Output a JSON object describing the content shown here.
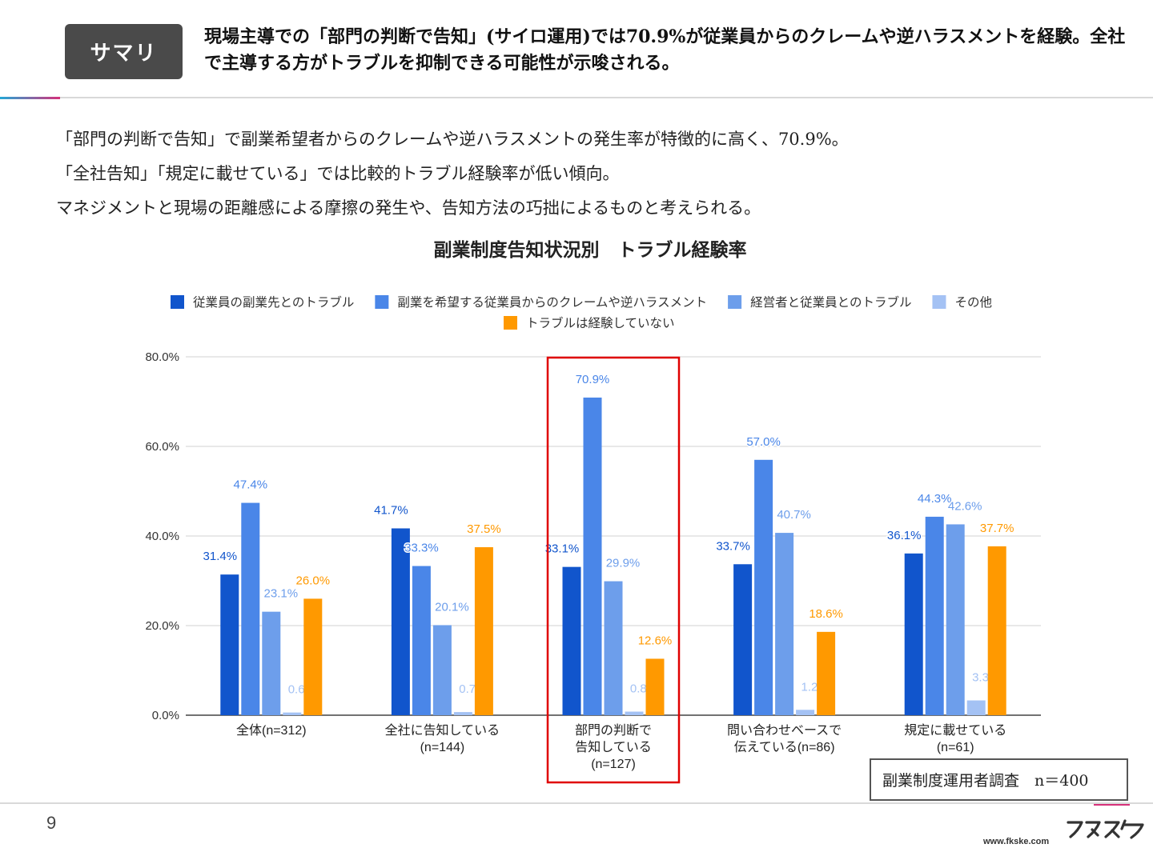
{
  "summary": {
    "badge": "サマリ",
    "text": "現場主導での「部門の判断で告知」(サイロ運用)では70.9%が従業員からのクレームや逆ハラスメントを経験。全社で主導する方がトラブルを抑制できる可能性が示唆される。"
  },
  "body": {
    "lines": [
      "「部門の判断で告知」で副業希望者からのクレームや逆ハラスメントの発生率が特徴的に高く、70.9%。",
      "「全社告知」「規定に載せている」では比較的トラブル経験率が低い傾向。",
      "マネジメントと現場の距離感による摩擦の発生や、告知方法の巧拙によるものと考えられる。"
    ]
  },
  "chart_data": {
    "type": "bar",
    "title": "副業制度告知状況別　トラブル経験率",
    "xlabel": "",
    "ylabel": "",
    "ylim": [
      0,
      80
    ],
    "y_ticks": [
      "0.0%",
      "20.0%",
      "40.0%",
      "60.0%",
      "80.0%"
    ],
    "y_tick_values": [
      0,
      20,
      40,
      60,
      80
    ],
    "grid": true,
    "legend_position": "top",
    "categories": [
      [
        "全体(n=312)"
      ],
      [
        "全社に告知している",
        "(n=144)"
      ],
      [
        "部門の判断で",
        "告知している",
        "(n=127)"
      ],
      [
        "問い合わせベースで",
        "伝えている(n=86)"
      ],
      [
        "規定に載せている",
        "(n=61)"
      ]
    ],
    "series": [
      {
        "name": "従業員の副業先とのトラブル",
        "color": "#1155cc",
        "values": [
          31.4,
          41.7,
          33.1,
          33.7,
          36.1
        ]
      },
      {
        "name": "副業を希望する従業員からのクレームや逆ハラスメント",
        "color": "#4a86e8",
        "values": [
          47.4,
          33.3,
          70.9,
          57.0,
          44.3
        ]
      },
      {
        "name": "経営者と従業員とのトラブル",
        "color": "#6d9eeb",
        "values": [
          23.1,
          20.1,
          29.9,
          40.7,
          42.6
        ]
      },
      {
        "name": "その他",
        "color": "#a4c2f4",
        "values": [
          0.6,
          0.7,
          0.8,
          1.2,
          3.3
        ]
      },
      {
        "name": "トラブルは経験していない",
        "color": "#ff9900",
        "values": [
          26.0,
          37.5,
          12.6,
          18.6,
          37.7
        ]
      }
    ],
    "highlight_category_index": 2,
    "highlight_color": "#e00000"
  },
  "note": "副業制度運用者調査　n＝400",
  "footer": {
    "page_number": "9",
    "logo": "フクスケ",
    "url": "www.fkske.com"
  }
}
